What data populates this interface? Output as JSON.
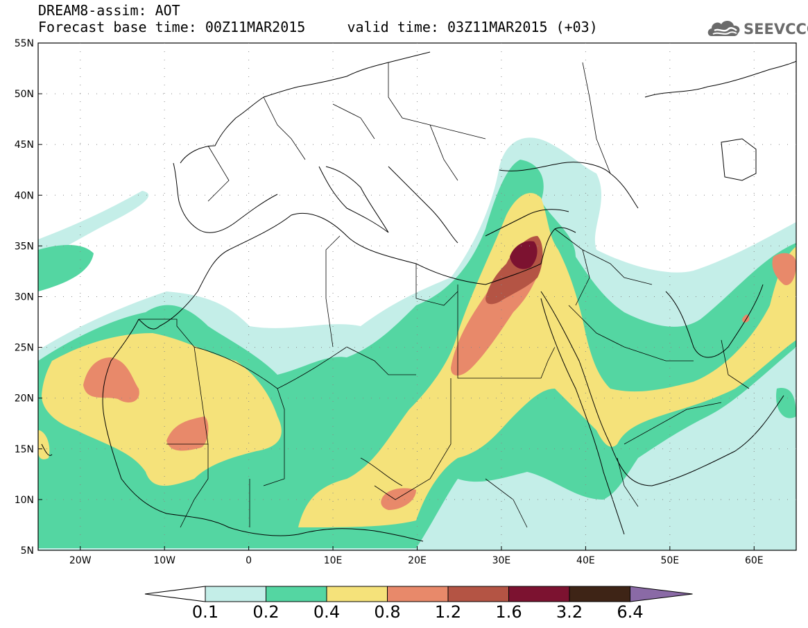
{
  "header": {
    "line1": "DREAM8-assim: AOT",
    "line2": "Forecast base time: 00Z11MAR2015     valid time: 03Z11MAR2015 (+03)"
  },
  "logo": {
    "text": "SEEVCCC",
    "icon": "cloud-icon"
  },
  "map": {
    "lat_labels": [
      "55N",
      "50N",
      "45N",
      "40N",
      "35N",
      "30N",
      "25N",
      "20N",
      "15N",
      "10N",
      "5N"
    ],
    "lon_labels": [
      "20W",
      "10W",
      "0",
      "10E",
      "20E",
      "30E",
      "40E",
      "50E",
      "60E"
    ],
    "lat_range": [
      5,
      55
    ],
    "lon_range": [
      -25,
      65
    ]
  },
  "colorbar": {
    "labels": [
      "0.1",
      "0.2",
      "0.4",
      "0.8",
      "1.2",
      "1.6",
      "3.2",
      "6.4"
    ],
    "colors": [
      "#ffffff",
      "#c4eee8",
      "#54d6a2",
      "#f5e27a",
      "#e8896a",
      "#b45444",
      "#7c1230",
      "#3e2416",
      "#8a6aa6"
    ]
  },
  "palette": {
    "c1": "#c4eee8",
    "c2": "#54d6a2",
    "c3": "#f5e27a",
    "c4": "#e8896a",
    "c5": "#b45444",
    "c6": "#7c1230"
  }
}
